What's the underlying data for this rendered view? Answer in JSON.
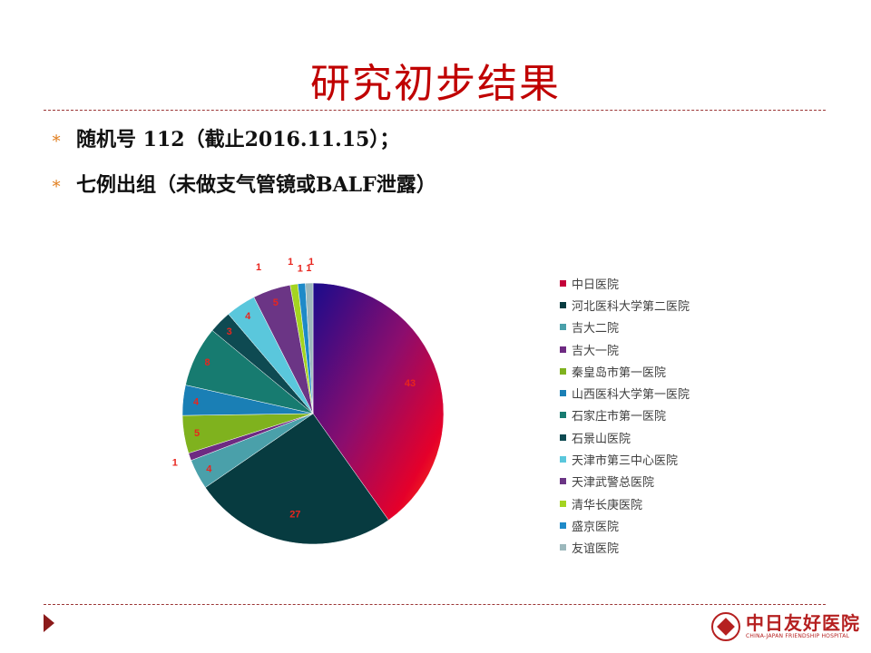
{
  "slide": {
    "title": "研究初步结果",
    "bullets": [
      {
        "mark": "∗",
        "text": "随机号 112（截止2016.11.15）；"
      },
      {
        "mark": "∗",
        "text": "七例出组（未做支气管镜或BALF泄露）"
      }
    ]
  },
  "logo": {
    "name_cn": "中日友好医院",
    "name_en": "CHINA-JAPAN FRIENDSHIP HOSPITAL"
  },
  "chart_data": {
    "type": "pie",
    "categories": [
      "中日医院",
      "河北医科大学第二医院",
      "吉大二院",
      "吉大一院",
      "秦皇岛市第一医院",
      "山西医科大学第一医院",
      "石家庄市第一医院",
      "石景山医院",
      "天津市第三中心医院",
      "天津武警总医院",
      "清华长庚医院",
      "盛京医院",
      "友谊医院"
    ],
    "values": [
      43,
      27,
      4,
      1,
      5,
      4,
      8,
      3,
      4,
      5,
      1,
      1,
      1
    ],
    "colors": [
      "#8b0d5e",
      "#073b40",
      "#4aa0aa",
      "#6e2a82",
      "#7fb21e",
      "#1a7fb5",
      "#177b70",
      "#0e4a52",
      "#5ac7dc",
      "#6b3585",
      "#a4d420",
      "#1e8ac8",
      "#9cb8bc"
    ],
    "extra_labels": [
      "1",
      "1"
    ],
    "legend_position": "right"
  }
}
